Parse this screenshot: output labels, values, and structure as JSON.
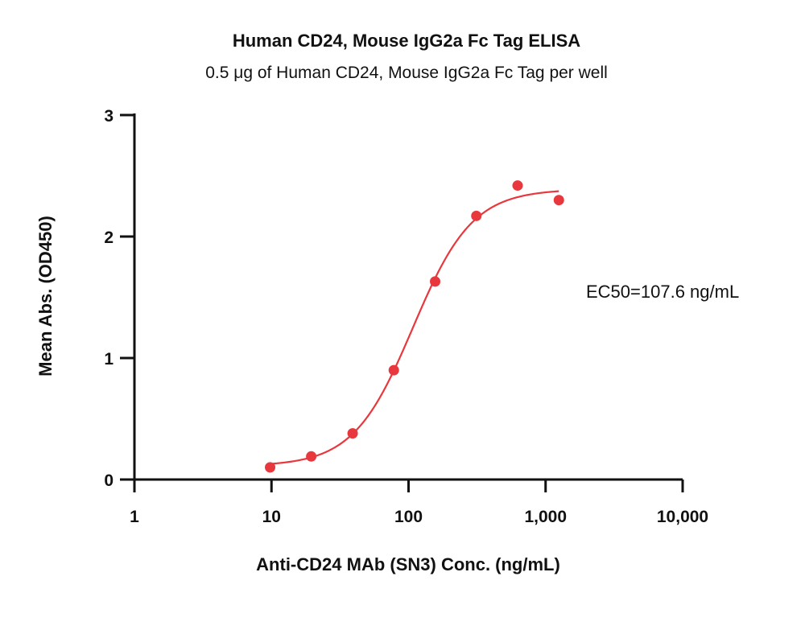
{
  "chart_data": {
    "type": "scatter",
    "title": "Human CD24, Mouse IgG2a Fc Tag ELISA",
    "subtitle": "0.5 μg of Human CD24, Mouse IgG2a Fc Tag per well",
    "xlabel": "Anti-CD24 MAb (SN3) Conc. (ng/mL)",
    "ylabel": "Mean Abs. (OD450)",
    "x_scale": "log",
    "xlim": [
      1,
      10000
    ],
    "ylim": [
      0,
      3
    ],
    "x_ticks": [
      1,
      10,
      100,
      1000,
      10000
    ],
    "x_tick_labels": [
      "1",
      "10",
      "100",
      "1,000",
      "10,000"
    ],
    "y_ticks": [
      0,
      1,
      2,
      3
    ],
    "y_tick_labels": [
      "0",
      "1",
      "2",
      "3"
    ],
    "grid": false,
    "color": "#e8383d",
    "series": [
      {
        "x": [
          9.77,
          19.5,
          39.1,
          78.1,
          156.3,
          312.5,
          625,
          1250
        ],
        "y": [
          0.1,
          0.19,
          0.38,
          0.9,
          1.63,
          2.17,
          2.42,
          2.3
        ]
      }
    ],
    "fit_curve": {
      "type": "4PL",
      "bottom": 0.11,
      "top": 2.39,
      "ec50": 107.6,
      "hill": 2.0,
      "x_range": [
        9.77,
        1250
      ]
    },
    "annotation": "EC50=107.6 ng/mL"
  }
}
